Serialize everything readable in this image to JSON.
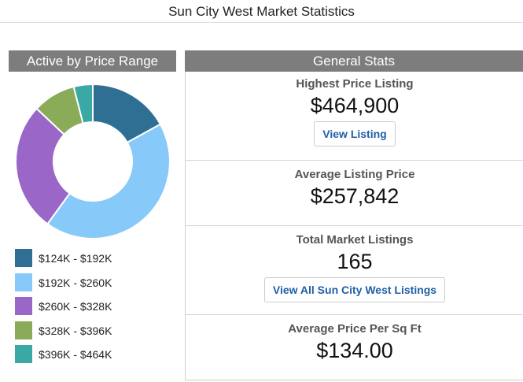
{
  "page": {
    "title": "Sun City West Market Statistics"
  },
  "left_panel": {
    "header": "Active by Price Range"
  },
  "right_panel": {
    "header": "General Stats"
  },
  "stats": {
    "highest": {
      "label": "Highest Price Listing",
      "value": "$464,900",
      "button": "View Listing"
    },
    "average": {
      "label": "Average Listing Price",
      "value": "$257,842"
    },
    "total": {
      "label": "Total Market Listings",
      "value": "165",
      "button": "View All Sun City West Listings"
    },
    "per_sqft": {
      "label": "Average Price Per Sq Ft",
      "value": "$134.00"
    }
  },
  "chart_data": {
    "type": "pie",
    "donut": true,
    "title": "Active by Price Range",
    "legend_position": "bottom",
    "categories": [
      "$124K - $192K",
      "$192K - $260K",
      "$260K - $328K",
      "$328K - $396K",
      "$396K - $464K"
    ],
    "values": [
      17,
      43,
      27,
      9,
      4
    ],
    "colors": [
      "#2f6f93",
      "#87cafa",
      "#9a66c7",
      "#8aab58",
      "#3aa8a4"
    ]
  }
}
